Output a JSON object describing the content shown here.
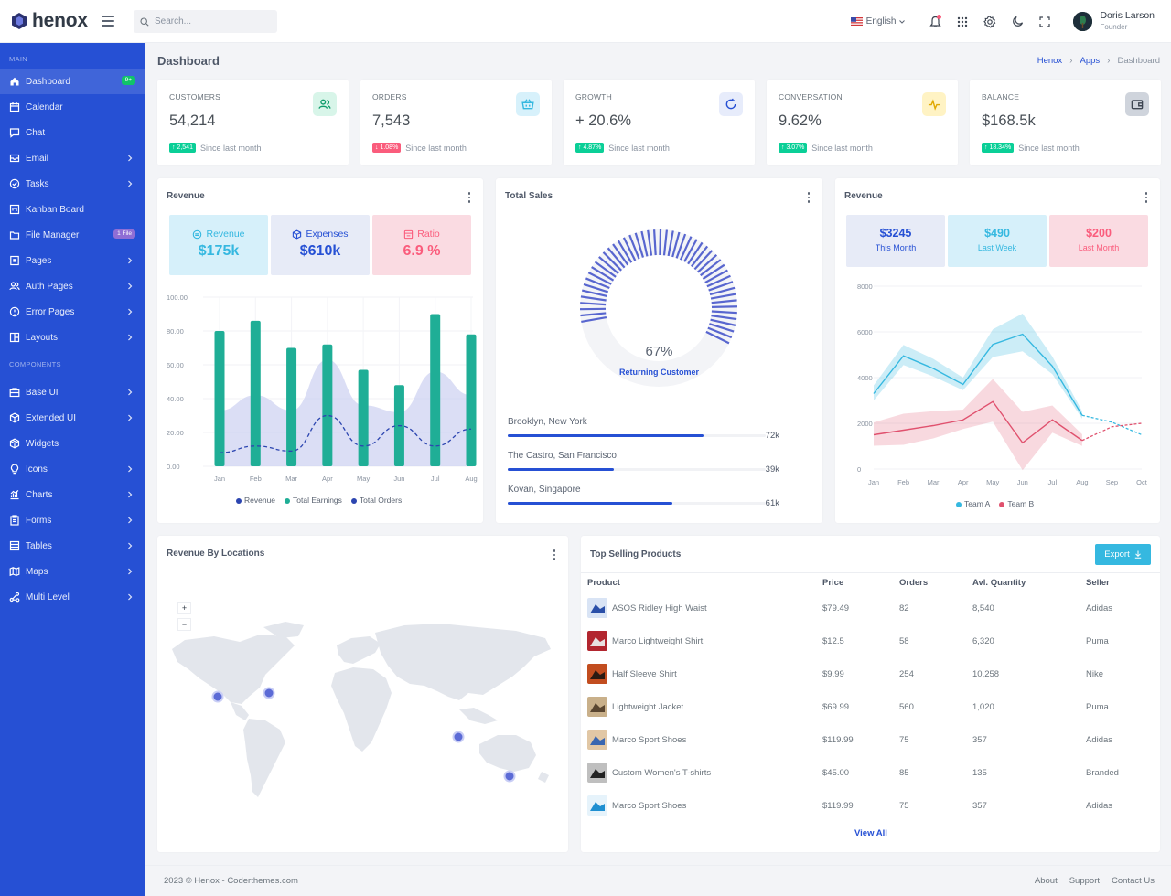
{
  "brand": {
    "name": "henox"
  },
  "search": {
    "placeholder": "Search..."
  },
  "topbar": {
    "language": "English",
    "user_name": "Doris Larson",
    "user_role": "Founder"
  },
  "sidebar": {
    "section_main": "MAIN",
    "section_components": "COMPONENTS",
    "main_items": [
      {
        "label": "Dashboard",
        "badge": "9+",
        "icon": "home-icon"
      },
      {
        "label": "Calendar",
        "icon": "calendar-icon"
      },
      {
        "label": "Chat",
        "icon": "chat-icon"
      },
      {
        "label": "Email",
        "icon": "mail-icon"
      },
      {
        "label": "Tasks",
        "icon": "check-circle-icon"
      },
      {
        "label": "Kanban Board",
        "icon": "kanban-icon"
      },
      {
        "label": "File Manager",
        "badge": "1 File",
        "icon": "folder-icon"
      },
      {
        "label": "Pages",
        "icon": "page-icon"
      },
      {
        "label": "Auth Pages",
        "icon": "users-icon"
      },
      {
        "label": "Error Pages",
        "icon": "alert-circle-icon"
      },
      {
        "label": "Layouts",
        "icon": "layout-icon"
      }
    ],
    "component_items": [
      {
        "label": "Base UI",
        "icon": "briefcase-icon"
      },
      {
        "label": "Extended UI",
        "icon": "box-icon"
      },
      {
        "label": "Widgets",
        "icon": "package-icon"
      },
      {
        "label": "Icons",
        "icon": "bulb-icon"
      },
      {
        "label": "Charts",
        "icon": "chart-icon"
      },
      {
        "label": "Forms",
        "icon": "clipboard-icon"
      },
      {
        "label": "Tables",
        "icon": "table-icon"
      },
      {
        "label": "Maps",
        "icon": "map-icon"
      },
      {
        "label": "Multi Level",
        "icon": "share-icon"
      }
    ]
  },
  "page": {
    "title": "Dashboard",
    "breadcrumb": [
      "Henox",
      "Apps",
      "Dashboard"
    ]
  },
  "stats": [
    {
      "label": "CUSTOMERS",
      "value": "54,214",
      "change": "↑ 2,541",
      "direction": "up",
      "note": "Since last month",
      "icon": "users-icon",
      "icon_bg": "#d8f5e9",
      "icon_color": "#0f9d6c"
    },
    {
      "label": "ORDERS",
      "value": "7,543",
      "change": "↓ 1.08%",
      "direction": "down",
      "note": "Since last month",
      "icon": "basket-icon",
      "icon_bg": "#d7f1fb",
      "icon_color": "#35b8e0"
    },
    {
      "label": "GROWTH",
      "value": "+ 20.6%",
      "change": "↑ 4.87%",
      "direction": "up",
      "note": "Since last month",
      "icon": "refresh-icon",
      "icon_bg": "#e7ecfb",
      "icon_color": "#2650d4"
    },
    {
      "label": "CONVERSATION",
      "value": "9.62%",
      "change": "↑ 3.07%",
      "direction": "up",
      "note": "Since last month",
      "icon": "pulse-icon",
      "icon_bg": "#fff3c4",
      "icon_color": "#e0a800"
    },
    {
      "label": "BALANCE",
      "value": "$168.5k",
      "change": "↑ 18.34%",
      "direction": "up",
      "note": "Since last month",
      "icon": "wallet-icon",
      "icon_bg": "#cfd4dc",
      "icon_color": "#3d4551"
    }
  ],
  "revenue_card": {
    "title": "Revenue",
    "boxes": [
      {
        "label": "Revenue",
        "value": "$175k",
        "bg": "#d6f0fa",
        "color": "#35b8e0",
        "icon": "dollar-circle-icon"
      },
      {
        "label": "Expenses",
        "value": "$610k",
        "bg": "#e7ebf7",
        "color": "#2650d4",
        "icon": "cube-icon"
      },
      {
        "label": "Ratio",
        "value": "6.9 %",
        "bg": "#fadbe2",
        "color": "#fa5c7c",
        "icon": "ratio-icon"
      }
    ],
    "legend": [
      "Revenue",
      "Total Earnings",
      "Total Orders"
    ]
  },
  "total_sales": {
    "title": "Total Sales",
    "percent": "67%",
    "caption": "Returning Customer",
    "locations": [
      {
        "name": "Brooklyn, New York",
        "value": "72k",
        "fraction": 0.76
      },
      {
        "name": "The Castro, San Francisco",
        "value": "39k",
        "fraction": 0.41
      },
      {
        "name": "Kovan, Singapore",
        "value": "61k",
        "fraction": 0.64
      }
    ]
  },
  "team_card": {
    "title": "Revenue",
    "boxes": [
      {
        "value": "$3245",
        "label": "This Month",
        "bg": "#e7ebf7",
        "color": "#2650d4"
      },
      {
        "value": "$490",
        "label": "Last Week",
        "bg": "#d6f0fa",
        "color": "#35b8e0"
      },
      {
        "value": "$200",
        "label": "Last Month",
        "bg": "#fadbe2",
        "color": "#fa5c7c"
      }
    ],
    "legend": [
      "Team A",
      "Team B"
    ]
  },
  "chart_data": [
    {
      "type": "bar",
      "categories": [
        "Jan",
        "Feb",
        "Mar",
        "Apr",
        "May",
        "Jun",
        "Jul",
        "Aug"
      ],
      "ylim": [
        0,
        100
      ],
      "yticks": [
        "0.00",
        "20.00",
        "40.00",
        "60.00",
        "80.00",
        "100.00"
      ],
      "series": [
        {
          "name": "Total Earnings",
          "values": [
            80,
            86,
            70,
            72,
            57,
            48,
            90,
            78
          ],
          "color": "#1fae96"
        },
        {
          "name": "Revenue",
          "values": [
            33,
            42,
            33,
            63,
            36,
            32,
            56,
            42
          ],
          "color": "#c8cdf0"
        },
        {
          "name": "Total Orders",
          "values": [
            8,
            12,
            9,
            30,
            12,
            24,
            12,
            22
          ],
          "color": "#2c45b0"
        }
      ]
    },
    {
      "type": "line",
      "x": [
        "Jan",
        "Feb",
        "Mar",
        "Apr",
        "May",
        "Jun",
        "Jul",
        "Aug",
        "Sep",
        "Oct"
      ],
      "ylim": [
        0,
        8000
      ],
      "yticks": [
        "0",
        "2000",
        "4000",
        "6000",
        "8000"
      ],
      "series": [
        {
          "name": "Team A",
          "values": [
            3300,
            4950,
            4400,
            3700,
            5450,
            5900,
            4500,
            2350,
            2050,
            1500
          ],
          "color": "#35b8e0"
        },
        {
          "name": "Team B",
          "values": [
            1500,
            1700,
            1900,
            2150,
            2950,
            1150,
            2150,
            1250,
            1850,
            2000
          ],
          "color": "#e0516e"
        }
      ]
    }
  ],
  "locations_card": {
    "title": "Revenue By Locations",
    "zoom_in": "+",
    "zoom_out": "−"
  },
  "products": {
    "title": "Top Selling Products",
    "export": "Export",
    "columns": [
      "Product",
      "Price",
      "Orders",
      "Avl. Quantity",
      "Seller"
    ],
    "rows": [
      [
        "ASOS Ridley High Waist",
        "$79.49",
        "82",
        "8,540",
        "Adidas"
      ],
      [
        "Marco Lightweight Shirt",
        "$12.5",
        "58",
        "6,320",
        "Puma"
      ],
      [
        "Half Sleeve Shirt",
        "$9.99",
        "254",
        "10,258",
        "Nike"
      ],
      [
        "Lightweight Jacket",
        "$69.99",
        "560",
        "1,020",
        "Puma"
      ],
      [
        "Marco Sport Shoes",
        "$119.99",
        "75",
        "357",
        "Adidas"
      ],
      [
        "Custom Women's T-shirts",
        "$45.00",
        "85",
        "135",
        "Branded"
      ],
      [
        "Marco Sport Shoes",
        "$119.99",
        "75",
        "357",
        "Adidas"
      ]
    ],
    "view_all": "View All"
  },
  "footer": {
    "copyright": "2023 © Henox - Coderthemes.com",
    "links": [
      "About",
      "Support",
      "Contact Us"
    ]
  }
}
